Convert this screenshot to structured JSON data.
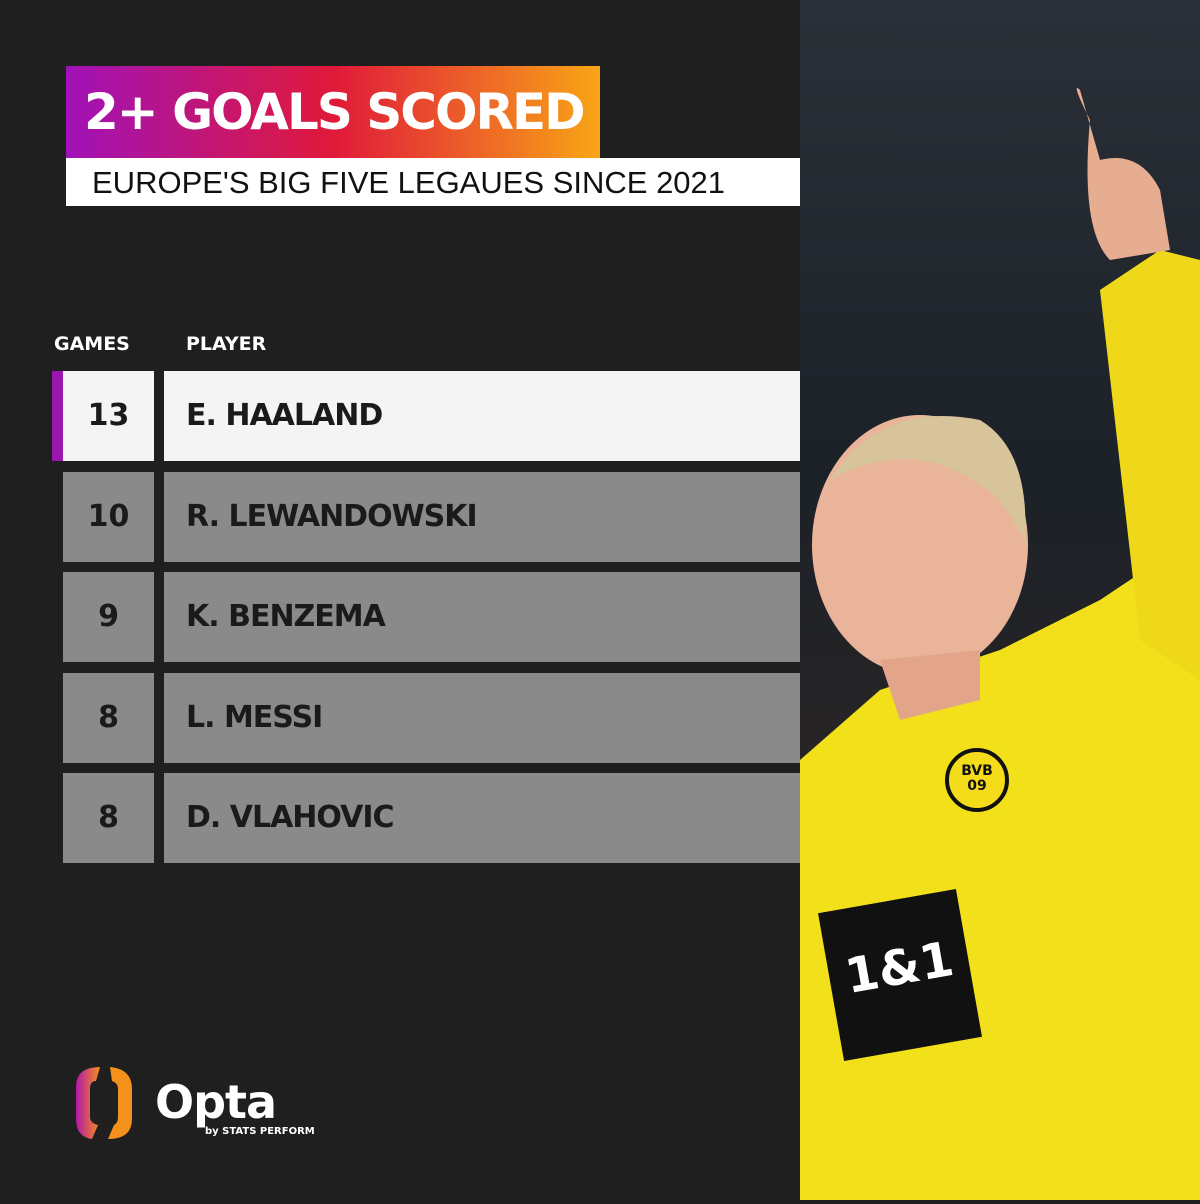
{
  "title": "2+ GOALS SCORED",
  "subtitle": "EUROPE'S  BIG FIVE LEGAUES SINCE 2021",
  "chart_data": {
    "type": "table",
    "columns": [
      "GAMES",
      "PLAYER"
    ],
    "rows": [
      {
        "games": "13",
        "player": "E. HAALAND"
      },
      {
        "games": "10",
        "player": "R. LEWANDOWSKI"
      },
      {
        "games": "9",
        "player": "K. BENZEMA"
      },
      {
        "games": "8",
        "player": "L. MESSI"
      },
      {
        "games": "8",
        "player": "D. VLAHOVIC"
      }
    ],
    "highlight_color": "#9b17b0"
  },
  "photo": {
    "sponsor": "1&1",
    "club": "BVB 09"
  },
  "logo": {
    "name": "Opta",
    "tagline": "by STATS PERFORM"
  }
}
